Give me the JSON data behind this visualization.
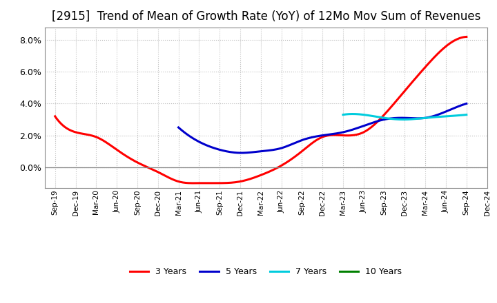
{
  "title": "[2915]  Trend of Mean of Growth Rate (YoY) of 12Mo Mov Sum of Revenues",
  "title_fontsize": 12,
  "ylim": [
    -0.013,
    0.088
  ],
  "yticks": [
    0.0,
    0.02,
    0.04,
    0.06,
    0.08
  ],
  "x_labels": [
    "Sep-19",
    "Dec-19",
    "Mar-20",
    "Jun-20",
    "Sep-20",
    "Dec-20",
    "Mar-21",
    "Jun-21",
    "Sep-21",
    "Dec-21",
    "Mar-22",
    "Jun-22",
    "Sep-22",
    "Dec-22",
    "Mar-23",
    "Jun-23",
    "Sep-23",
    "Dec-23",
    "Mar-24",
    "Jun-24",
    "Sep-24",
    "Dec-24"
  ],
  "series": {
    "3 Years": {
      "color": "#ff0000",
      "data_x": [
        0,
        1,
        2,
        3,
        4,
        5,
        6,
        7,
        8,
        9,
        10,
        11,
        12,
        13,
        14,
        15,
        16,
        17,
        18,
        19,
        20
      ],
      "data_y": [
        0.032,
        0.022,
        0.019,
        0.011,
        0.003,
        -0.003,
        -0.009,
        -0.01,
        -0.01,
        -0.009,
        -0.005,
        0.001,
        0.01,
        0.019,
        0.02,
        0.022,
        0.033,
        0.048,
        0.063,
        0.076,
        0.082
      ]
    },
    "5 Years": {
      "color": "#0000cc",
      "data_x": [
        6,
        7,
        8,
        9,
        10,
        11,
        12,
        13,
        14,
        15,
        16,
        17,
        18,
        19,
        20
      ],
      "data_y": [
        0.025,
        0.016,
        0.011,
        0.009,
        0.01,
        0.012,
        0.017,
        0.02,
        0.022,
        0.026,
        0.03,
        0.031,
        0.031,
        0.035,
        0.04
      ]
    },
    "7 Years": {
      "color": "#00ccdd",
      "data_x": [
        14,
        15,
        16,
        17,
        18,
        19,
        20
      ],
      "data_y": [
        0.033,
        0.033,
        0.031,
        0.03,
        0.031,
        0.032,
        0.033
      ]
    },
    "10 Years": {
      "color": "#008000",
      "data_x": [],
      "data_y": []
    }
  },
  "legend_order": [
    "3 Years",
    "5 Years",
    "7 Years",
    "10 Years"
  ],
  "background_color": "#ffffff",
  "grid_color": "#bbbbbb",
  "line_width": 2.2
}
